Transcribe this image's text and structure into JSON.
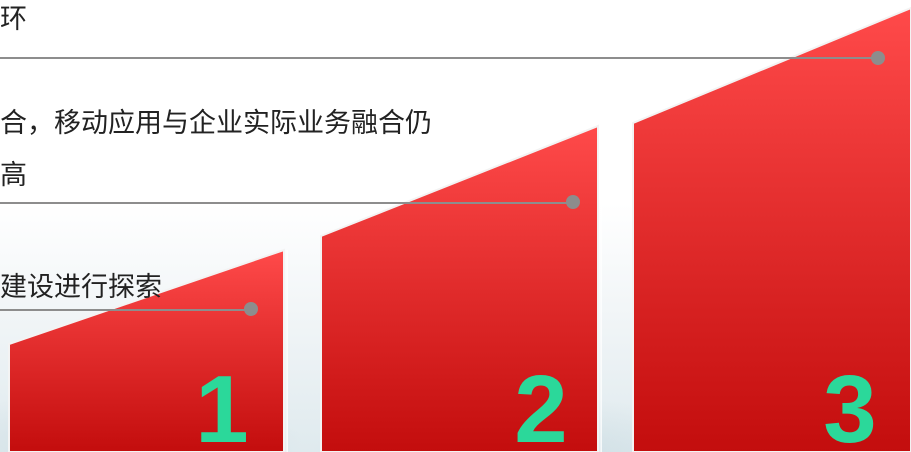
{
  "steps": [
    {
      "text_lines": [
        "环"
      ],
      "number": "3"
    },
    {
      "text_lines": [
        "合，移动应用与企业实际业务融合仍",
        "高"
      ],
      "number": "2"
    },
    {
      "text_lines": [
        "建设进行探索"
      ],
      "number": "1"
    }
  ],
  "colors": {
    "bar_top": "#ff4a4a",
    "bar_bottom": "#c30d0d",
    "number": "#2bd89a",
    "connector": "#8d8d8d"
  }
}
